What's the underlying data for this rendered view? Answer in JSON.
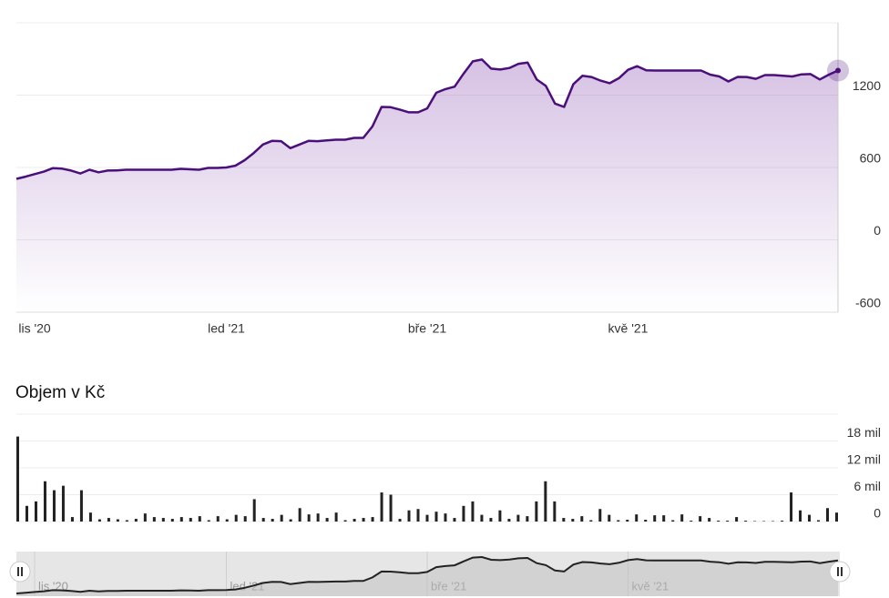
{
  "chart_data": [
    {
      "type": "area",
      "series": [
        {
          "color": "#4b0f7a",
          "values": [
            506,
            524,
            545,
            565,
            595,
            590,
            574,
            550,
            581,
            560,
            574,
            576,
            581,
            581,
            581,
            581,
            581,
            581,
            589,
            585,
            581,
            596,
            596,
            600,
            615,
            660,
            720,
            790,
            820,
            818,
            760,
            790,
            820,
            818,
            825,
            830,
            830,
            845,
            845,
            940,
            1102,
            1100,
            1080,
            1057,
            1057,
            1090,
            1220,
            1250,
            1270,
            1380,
            1480,
            1495,
            1420,
            1412,
            1425,
            1460,
            1470,
            1329,
            1276,
            1130,
            1102,
            1290,
            1360,
            1350,
            1320,
            1299,
            1340,
            1410,
            1440,
            1405,
            1404,
            1404,
            1404,
            1404,
            1404,
            1404,
            1370,
            1355,
            1313,
            1351,
            1350,
            1335,
            1366,
            1366,
            1360,
            1355,
            1372,
            1374,
            1330,
            1370,
            1404
          ]
        }
      ],
      "xlim": [
        0,
        90
      ],
      "xticks": [
        {
          "value": 2,
          "label": "lis '20"
        },
        {
          "value": 23,
          "label": "led '21"
        },
        {
          "value": 45,
          "label": "bře '21"
        },
        {
          "value": 67,
          "label": "kvě '21"
        }
      ],
      "ylim": [
        -600,
        1800
      ],
      "yticks": [
        -600,
        0,
        600,
        1200
      ],
      "grid": true
    },
    {
      "type": "bar",
      "title": "Objem v Kč",
      "color": "#222222",
      "values": [
        19000000,
        3500000,
        4500000,
        9000000,
        7000000,
        8000000,
        1000000,
        7000000,
        2000000,
        500000,
        800000,
        500000,
        300000,
        600000,
        1800000,
        1000000,
        800000,
        600000,
        1000000,
        800000,
        1200000,
        300000,
        1200000,
        500000,
        1500000,
        1200000,
        5000000,
        800000,
        600000,
        1500000,
        500000,
        3000000,
        1600000,
        1800000,
        800000,
        2000000,
        300000,
        600000,
        800000,
        1000000,
        6500000,
        6000000,
        600000,
        2500000,
        2800000,
        1500000,
        2200000,
        1800000,
        800000,
        3500000,
        4500000,
        1500000,
        800000,
        2500000,
        600000,
        1500000,
        1200000,
        4500000,
        9000000,
        4500000,
        800000,
        600000,
        1200000,
        300000,
        2800000,
        1500000,
        300000,
        400000,
        1600000,
        400000,
        1400000,
        1400000,
        300000,
        1600000,
        200000,
        1200000,
        800000,
        200000,
        200000,
        1000000,
        200000,
        100000,
        100000,
        100000,
        200000,
        6500000,
        2500000,
        1500000,
        300000,
        3000000,
        2000000
      ],
      "ylim": [
        0,
        24000000
      ],
      "yticks": [
        0,
        {
          "value": 6000000,
          "label": "6 mil"
        },
        {
          "value": 12000000,
          "label": "12 mil"
        },
        {
          "value": 18000000,
          "label": "18 mil"
        }
      ],
      "grid": true
    }
  ]
}
